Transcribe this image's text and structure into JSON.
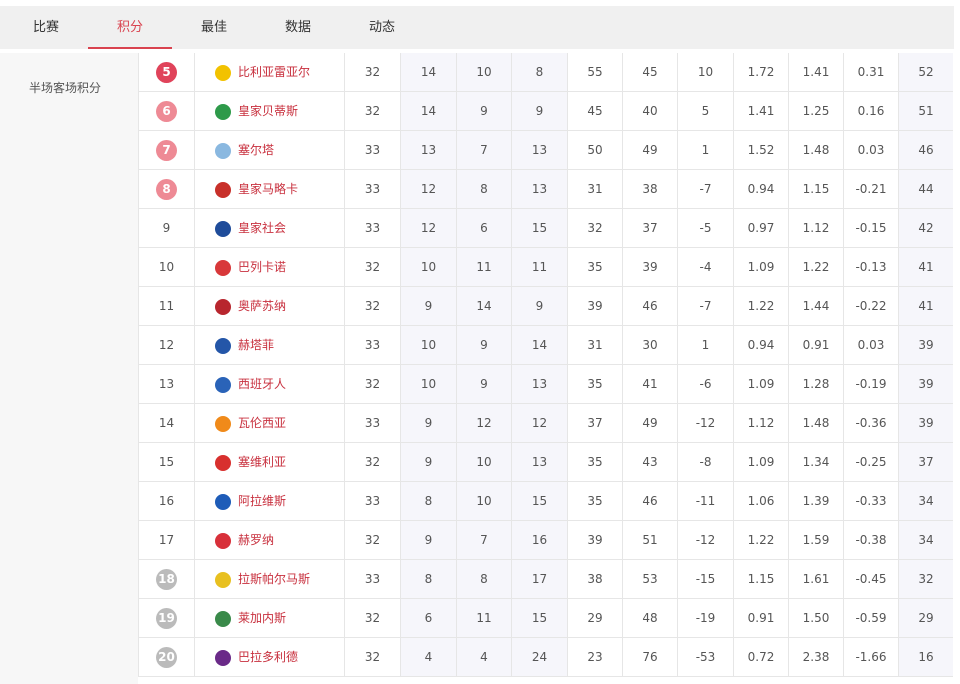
{
  "tabs": [
    {
      "label": "比赛"
    },
    {
      "label": "积分",
      "active": true
    },
    {
      "label": "最佳"
    },
    {
      "label": "数据"
    },
    {
      "label": "动态"
    }
  ],
  "sidebar": {
    "items": [
      {
        "label": "半场客场积分"
      }
    ]
  },
  "colors": {
    "accent": "#d9434f",
    "team_text": "#c8303e",
    "badge_top": "#e0435a",
    "badge_euro": "#ee8a95",
    "badge_relegation": "#bbbbbb"
  },
  "rows": [
    {
      "rank": "5",
      "badge": "top",
      "team": "比利亚雷亚尔",
      "logo": "#f2c200",
      "cells": [
        "32",
        "14",
        "10",
        "8",
        "55",
        "45",
        "10",
        "1.72",
        "1.41",
        "0.31",
        "52"
      ]
    },
    {
      "rank": "6",
      "badge": "euro",
      "team": "皇家贝蒂斯",
      "logo": "#2e9a4a",
      "cells": [
        "32",
        "14",
        "9",
        "9",
        "45",
        "40",
        "5",
        "1.41",
        "1.25",
        "0.16",
        "51"
      ]
    },
    {
      "rank": "7",
      "badge": "euro",
      "team": "塞尔塔",
      "logo": "#8ab8e0",
      "cells": [
        "33",
        "13",
        "7",
        "13",
        "50",
        "49",
        "1",
        "1.52",
        "1.48",
        "0.03",
        "46"
      ]
    },
    {
      "rank": "8",
      "badge": "euro",
      "team": "皇家马略卡",
      "logo": "#c8302a",
      "cells": [
        "33",
        "12",
        "8",
        "13",
        "31",
        "38",
        "-7",
        "0.94",
        "1.15",
        "-0.21",
        "44"
      ]
    },
    {
      "rank": "9",
      "badge": "",
      "team": "皇家社会",
      "logo": "#1f4c9a",
      "cells": [
        "33",
        "12",
        "6",
        "15",
        "32",
        "37",
        "-5",
        "0.97",
        "1.12",
        "-0.15",
        "42"
      ]
    },
    {
      "rank": "10",
      "badge": "",
      "team": "巴列卡诺",
      "logo": "#d8383a",
      "cells": [
        "32",
        "10",
        "11",
        "11",
        "35",
        "39",
        "-4",
        "1.09",
        "1.22",
        "-0.13",
        "41"
      ]
    },
    {
      "rank": "11",
      "badge": "",
      "team": "奥萨苏纳",
      "logo": "#b8262e",
      "cells": [
        "32",
        "9",
        "14",
        "9",
        "39",
        "46",
        "-7",
        "1.22",
        "1.44",
        "-0.22",
        "41"
      ]
    },
    {
      "rank": "12",
      "badge": "",
      "team": "赫塔菲",
      "logo": "#2456a8",
      "cells": [
        "33",
        "10",
        "9",
        "14",
        "31",
        "30",
        "1",
        "0.94",
        "0.91",
        "0.03",
        "39"
      ]
    },
    {
      "rank": "13",
      "badge": "",
      "team": "西班牙人",
      "logo": "#2a63b8",
      "cells": [
        "32",
        "10",
        "9",
        "13",
        "35",
        "41",
        "-6",
        "1.09",
        "1.28",
        "-0.19",
        "39"
      ]
    },
    {
      "rank": "14",
      "badge": "",
      "team": "瓦伦西亚",
      "logo": "#f08a1a",
      "cells": [
        "33",
        "9",
        "12",
        "12",
        "37",
        "49",
        "-12",
        "1.12",
        "1.48",
        "-0.36",
        "39"
      ]
    },
    {
      "rank": "15",
      "badge": "",
      "team": "塞维利亚",
      "logo": "#d8302e",
      "cells": [
        "32",
        "9",
        "10",
        "13",
        "35",
        "43",
        "-8",
        "1.09",
        "1.34",
        "-0.25",
        "37"
      ]
    },
    {
      "rank": "16",
      "badge": "",
      "team": "阿拉维斯",
      "logo": "#1e5cb8",
      "cells": [
        "33",
        "8",
        "10",
        "15",
        "35",
        "46",
        "-11",
        "1.06",
        "1.39",
        "-0.33",
        "34"
      ]
    },
    {
      "rank": "17",
      "badge": "",
      "team": "赫罗纳",
      "logo": "#d8303a",
      "cells": [
        "32",
        "9",
        "7",
        "16",
        "39",
        "51",
        "-12",
        "1.22",
        "1.59",
        "-0.38",
        "34"
      ]
    },
    {
      "rank": "18",
      "badge": "rel",
      "team": "拉斯帕尔马斯",
      "logo": "#e8c020",
      "cells": [
        "33",
        "8",
        "8",
        "17",
        "38",
        "53",
        "-15",
        "1.15",
        "1.61",
        "-0.45",
        "32"
      ]
    },
    {
      "rank": "19",
      "badge": "rel",
      "team": "莱加内斯",
      "logo": "#3a8a4a",
      "cells": [
        "32",
        "6",
        "11",
        "15",
        "29",
        "48",
        "-19",
        "0.91",
        "1.50",
        "-0.59",
        "29"
      ]
    },
    {
      "rank": "20",
      "badge": "rel",
      "team": "巴拉多利德",
      "logo": "#6a2a88",
      "cells": [
        "32",
        "4",
        "4",
        "24",
        "23",
        "76",
        "-53",
        "0.72",
        "2.38",
        "-1.66",
        "16"
      ]
    }
  ]
}
